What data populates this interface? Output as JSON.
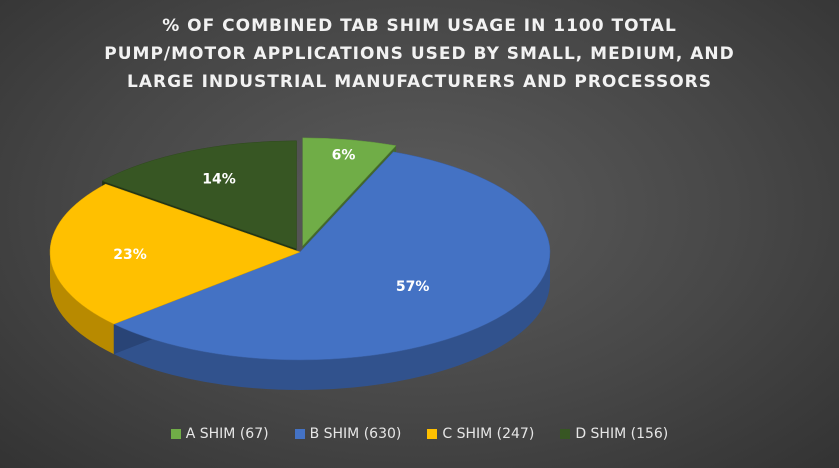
{
  "chart_data": {
    "type": "pie",
    "title_lines": [
      "% OF COMBINED TAB SHIM USAGE IN 1100 TOTAL",
      "PUMP/MOTOR APPLICATIONS USED BY SMALL, MEDIUM, AND",
      "LARGE INDUSTRIAL MANUFACTURERS AND PROCESSORS"
    ],
    "slices": [
      {
        "legend": "A SHIM (67)",
        "value": 67,
        "label": "6%",
        "color": "#70ad47"
      },
      {
        "legend": "B SHIM (630)",
        "value": 630,
        "label": "57%",
        "color": "#4472c4"
      },
      {
        "legend": "C SHIM (247)",
        "value": 247,
        "label": "23%",
        "color": "#ffc000"
      },
      {
        "legend": "D SHIM  (156)",
        "value": 156,
        "label": "14%",
        "color": "#375623"
      }
    ],
    "legend_position": "bottom",
    "style": "3d-exploded"
  }
}
